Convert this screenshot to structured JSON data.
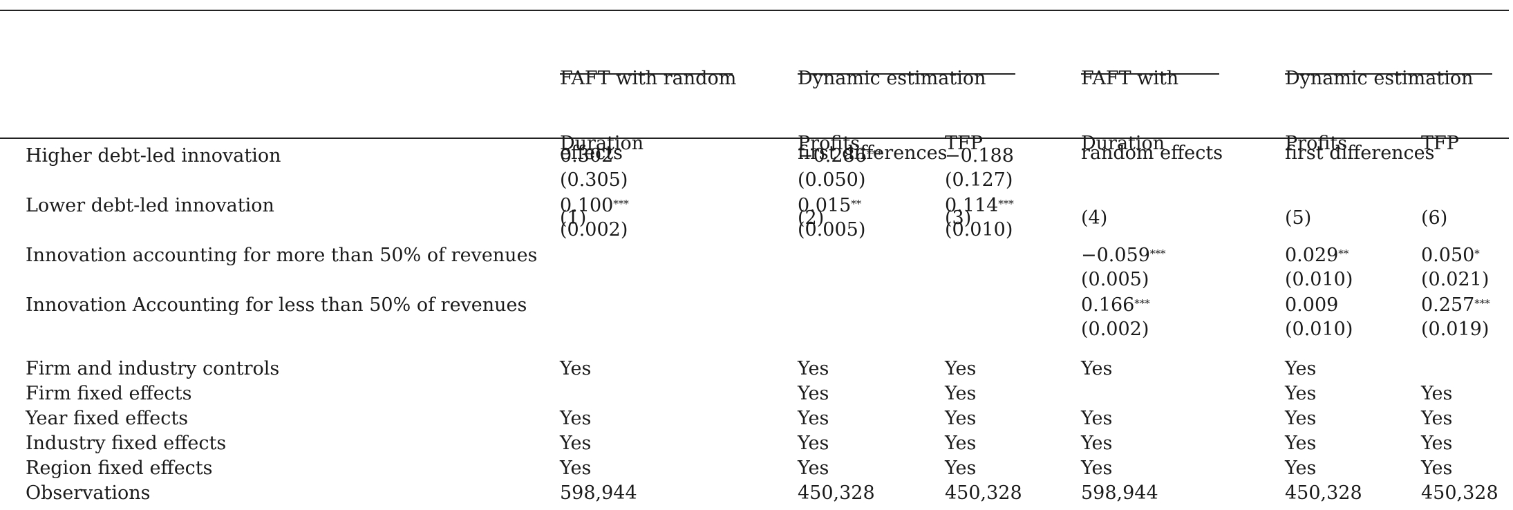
{
  "header": {
    "groups": [
      {
        "line1": "FAFT with random",
        "line2": "effects"
      },
      {
        "line1": "Dynamic estimation",
        "line2": "first differences"
      },
      {
        "line1": "FAFT with",
        "line2": "random effects"
      },
      {
        "line1": "Dynamic estimation",
        "line2": "first differences"
      }
    ],
    "columns": [
      {
        "name": "Duration",
        "num": "(1)"
      },
      {
        "name": "Profits",
        "num": "(2)"
      },
      {
        "name": "TFP",
        "num": "(3)"
      },
      {
        "name": "Duration",
        "num": "(4)"
      },
      {
        "name": "Profits",
        "num": "(5)"
      },
      {
        "name": "TFP",
        "num": "(6)"
      }
    ]
  },
  "coef_rows": [
    {
      "label": "Higher debt-led innovation",
      "cells": [
        {
          "coef": "0.302",
          "stars": "",
          "se": "(0.305)"
        },
        {
          "coef": "−0.286",
          "stars": "***",
          "se": "(0.050)"
        },
        {
          "coef": "−0.188",
          "stars": "",
          "se": "(0.127)"
        },
        null,
        null,
        null
      ]
    },
    {
      "label": "Lower debt-led innovation",
      "cells": [
        {
          "coef": "0.100",
          "stars": "***",
          "se": "(0.002)"
        },
        {
          "coef": "0.015",
          "stars": "**",
          "se": "(0.005)"
        },
        {
          "coef": "0.114",
          "stars": "***",
          "se": "(0.010)"
        },
        null,
        null,
        null
      ]
    },
    {
      "label": "Innovation accounting for more than 50% of revenues",
      "cells": [
        null,
        null,
        null,
        {
          "coef": "−0.059",
          "stars": "***",
          "se": "(0.005)"
        },
        {
          "coef": "0.029",
          "stars": "**",
          "se": "(0.010)"
        },
        {
          "coef": "0.050",
          "stars": "*",
          "se": "(0.021)"
        }
      ]
    },
    {
      "label": "Innovation Accounting for less than 50% of revenues",
      "cells": [
        null,
        null,
        null,
        {
          "coef": "0.166",
          "stars": "***",
          "se": "(0.002)"
        },
        {
          "coef": "0.009",
          "stars": "",
          "se": "(0.010)"
        },
        {
          "coef": "0.257",
          "stars": "***",
          "se": "(0.019)"
        }
      ]
    }
  ],
  "control_rows": [
    {
      "label": "Firm and industry controls",
      "cells": [
        "Yes",
        "Yes",
        "Yes",
        "Yes",
        "Yes",
        ""
      ]
    },
    {
      "label": "Firm fixed effects",
      "cells": [
        "",
        "Yes",
        "Yes",
        "",
        "Yes",
        "Yes"
      ]
    },
    {
      "label": "Year fixed effects",
      "cells": [
        "Yes",
        "Yes",
        "Yes",
        "Yes",
        "Yes",
        "Yes"
      ]
    },
    {
      "label": "Industry fixed effects",
      "cells": [
        "Yes",
        "Yes",
        "Yes",
        "Yes",
        "Yes",
        "Yes"
      ]
    },
    {
      "label": "Region fixed effects",
      "cells": [
        "Yes",
        "Yes",
        "Yes",
        "Yes",
        "Yes",
        "Yes"
      ]
    },
    {
      "label": "Observations",
      "cells": [
        "598,944",
        "450,328",
        "450,328",
        "598,944",
        "450,328",
        "450,328"
      ]
    }
  ]
}
